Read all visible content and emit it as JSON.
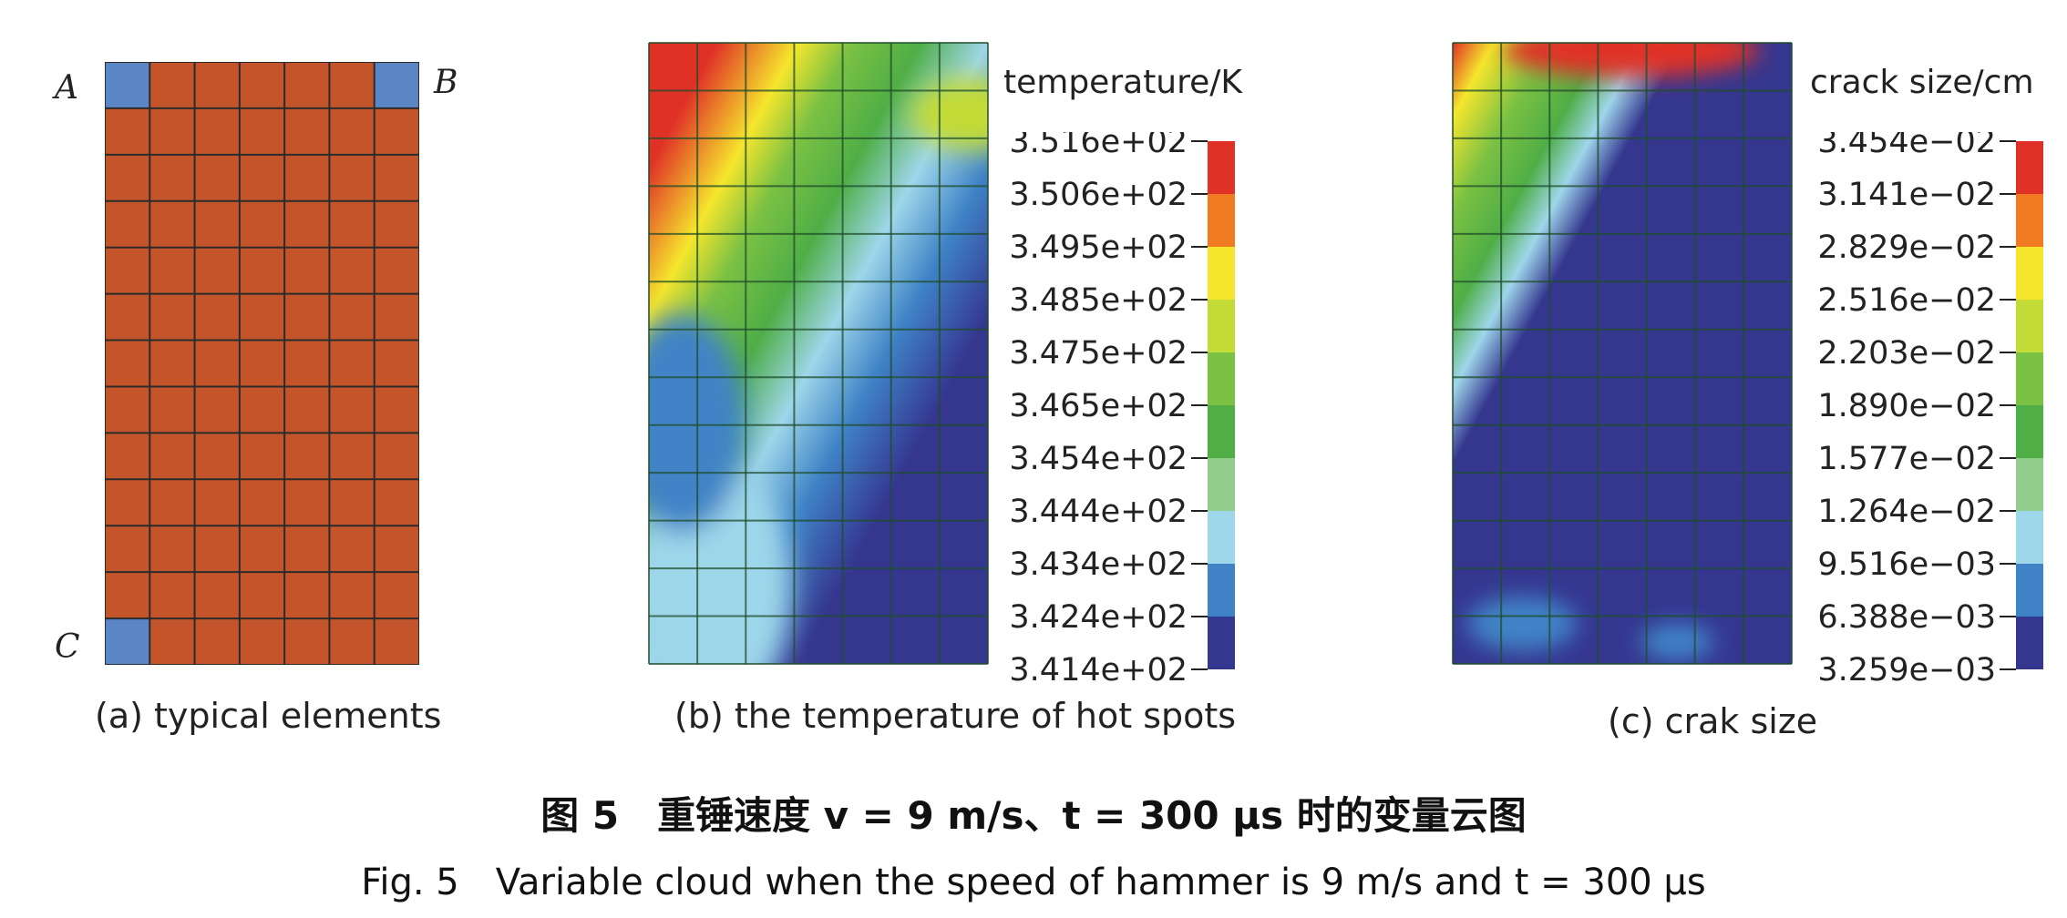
{
  "panel_a": {
    "caption": "(a) typical elements",
    "labels": {
      "A": "A",
      "B": "B",
      "C": "C"
    },
    "grid": {
      "cols": 7,
      "rows": 13
    },
    "colors": {
      "element": "#c4552a",
      "highlight": "#5b86c6",
      "line": "#2b2b2b"
    },
    "highlighted_elements": [
      {
        "corner": "A",
        "col": 0,
        "row": 0
      },
      {
        "corner": "B",
        "col": 6,
        "row": 0
      },
      {
        "corner": "C",
        "col": 0,
        "row": 12
      }
    ]
  },
  "panel_b": {
    "caption": "(b) the temperature of hot spots",
    "legend_title": "temperature/K",
    "legend_ticks": [
      "3.516e+02",
      "3.506e+02",
      "3.495e+02",
      "3.485e+02",
      "3.475e+02",
      "3.465e+02",
      "3.454e+02",
      "3.444e+02",
      "3.434e+02",
      "3.424e+02",
      "3.414e+02"
    ],
    "grid": {
      "cols": 7,
      "rows": 13
    }
  },
  "panel_c": {
    "caption": "(c) crak size",
    "legend_title": "crack size/cm",
    "legend_ticks": [
      "3.454e−02",
      "3.141e−02",
      "2.829e−02",
      "2.516e−02",
      "2.203e−02",
      "1.890e−02",
      "1.577e−02",
      "1.264e−02",
      "9.516e−03",
      "6.388e−03",
      "3.259e−03"
    ],
    "grid": {
      "cols": 7,
      "rows": 13
    }
  },
  "colorbar": [
    "#e03127",
    "#f07b23",
    "#f5e62c",
    "#c3db36",
    "#7bc143",
    "#4fae46",
    "#93cd8e",
    "#9ed6ea",
    "#3f83c6",
    "#35378f"
  ],
  "caption_zh": "图 5　重锤速度 v = 9 m/s、t = 300 μs 时的变量云图",
  "caption_en": "Fig. 5　Variable cloud when the speed of hammer is 9 m/s and t = 300 μs"
}
